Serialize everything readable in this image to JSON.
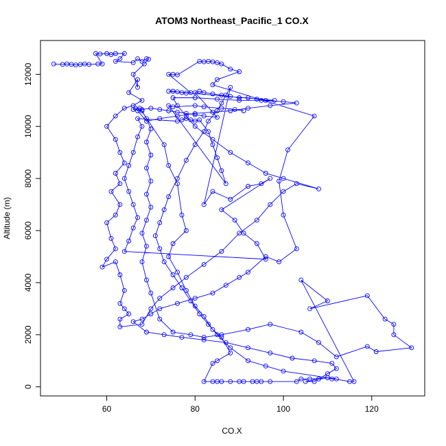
{
  "chart_data": {
    "type": "scatter",
    "title": "ATOM3 Northeast_Pacific_1 CO.X",
    "xlabel": "CO.X",
    "ylabel": "Altitude (m)",
    "xlim": [
      45,
      132
    ],
    "ylim": [
      -350,
      13300
    ],
    "x_ticks": [
      60,
      80,
      100,
      120
    ],
    "y_ticks": [
      0,
      2000,
      4000,
      6000,
      8000,
      10000,
      12000
    ],
    "x_tick_labels": [
      "60",
      "80",
      "100",
      "120"
    ],
    "y_tick_labels": [
      "0",
      "2000",
      "4000",
      "6000",
      "8000",
      "10000",
      "12000"
    ],
    "color": "#0000ff",
    "marker": "open-circle",
    "connected": true,
    "grid": false,
    "points": [
      [
        48,
        12400
      ],
      [
        50,
        12380
      ],
      [
        51,
        12400
      ],
      [
        52,
        12380
      ],
      [
        53,
        12360
      ],
      [
        54,
        12380
      ],
      [
        55,
        12400
      ],
      [
        56,
        12380
      ],
      [
        58,
        12400
      ],
      [
        59,
        12400
      ],
      [
        57.5,
        12800
      ],
      [
        58.5,
        12780
      ],
      [
        60,
        12800
      ],
      [
        61,
        12760
      ],
      [
        62,
        12800
      ],
      [
        64,
        12800
      ],
      [
        63,
        12600
      ],
      [
        62,
        12500
      ],
      [
        66,
        12450
      ],
      [
        67,
        12600
      ],
      [
        68,
        12500
      ],
      [
        69,
        12600
      ],
      [
        69.5,
        12580
      ],
      [
        68.5,
        12400
      ],
      [
        66,
        12000
      ],
      [
        67,
        11500
      ],
      [
        67,
        11800
      ],
      [
        65,
        11300
      ],
      [
        68,
        11000
      ],
      [
        66,
        10800
      ],
      [
        64,
        10700
      ],
      [
        62,
        10400
      ],
      [
        60,
        10000
      ],
      [
        62,
        9500
      ],
      [
        63,
        9000
      ],
      [
        64,
        8600
      ],
      [
        62,
        8200
      ],
      [
        63,
        7800
      ],
      [
        61,
        7500
      ],
      [
        63,
        7000
      ],
      [
        62,
        6600
      ],
      [
        60,
        6300
      ],
      [
        61,
        5700
      ],
      [
        62,
        5300
      ],
      [
        60,
        4900
      ],
      [
        59,
        4600
      ],
      [
        62,
        4800
      ],
      [
        63,
        4300
      ],
      [
        64,
        3700
      ],
      [
        63,
        3200
      ],
      [
        64,
        3000
      ],
      [
        65,
        2800
      ],
      [
        63,
        2600
      ],
      [
        63,
        2300
      ],
      [
        68,
        2400
      ],
      [
        70,
        3000
      ],
      [
        72,
        3400
      ],
      [
        75,
        3800
      ],
      [
        78,
        4200
      ],
      [
        82,
        4700
      ],
      [
        86,
        5200
      ],
      [
        90,
        5900
      ],
      [
        94,
        6400
      ],
      [
        97,
        7000
      ],
      [
        100,
        7500
      ],
      [
        103,
        7800
      ],
      [
        108,
        7600
      ],
      [
        100,
        8000
      ],
      [
        96,
        8200
      ],
      [
        92,
        8600
      ],
      [
        88,
        9000
      ],
      [
        84,
        9500
      ],
      [
        80,
        10000
      ],
      [
        78,
        10400
      ],
      [
        76,
        10800
      ],
      [
        75,
        11100
      ],
      [
        80,
        11100
      ],
      [
        85,
        11050
      ],
      [
        90,
        11000
      ],
      [
        95,
        11000
      ],
      [
        100,
        10950
      ],
      [
        103,
        10900
      ],
      [
        97,
        10800
      ],
      [
        92,
        10700
      ],
      [
        88,
        10600
      ],
      [
        84,
        10550
      ],
      [
        80,
        10500
      ],
      [
        76,
        10400
      ],
      [
        72,
        10300
      ],
      [
        69,
        10200
      ],
      [
        67,
        10600
      ],
      [
        68,
        10650
      ],
      [
        70,
        10700
      ],
      [
        72,
        10650
      ],
      [
        74,
        10600
      ],
      [
        76,
        10550
      ],
      [
        78,
        10500
      ],
      [
        80,
        10450
      ],
      [
        82,
        10400
      ],
      [
        85,
        10350
      ],
      [
        80,
        11300
      ],
      [
        81,
        11350
      ],
      [
        82,
        11300
      ],
      [
        84,
        11250
      ],
      [
        86,
        11200
      ],
      [
        88,
        11150
      ],
      [
        90,
        11100
      ],
      [
        92,
        11100
      ],
      [
        94,
        11050
      ],
      [
        96,
        11000
      ],
      [
        98,
        11000
      ],
      [
        74,
        11350
      ],
      [
        75,
        11350
      ],
      [
        76,
        11330
      ],
      [
        77,
        11300
      ],
      [
        78,
        11280
      ],
      [
        79,
        11300
      ],
      [
        74,
        12000
      ],
      [
        75,
        12000
      ],
      [
        76,
        11980
      ],
      [
        81,
        12500
      ],
      [
        82,
        12480
      ],
      [
        83,
        12500
      ],
      [
        84,
        12480
      ],
      [
        85,
        12450
      ],
      [
        86,
        12400
      ],
      [
        88,
        12200
      ],
      [
        90,
        12100
      ],
      [
        85,
        11800
      ],
      [
        84,
        11600
      ],
      [
        107,
        10400
      ],
      [
        101,
        9100
      ],
      [
        99,
        7900
      ],
      [
        100,
        6600
      ],
      [
        103,
        5300
      ],
      [
        99,
        4800
      ],
      [
        96,
        5000
      ],
      [
        92,
        4400
      ],
      [
        90,
        4200
      ],
      [
        87,
        3900
      ],
      [
        84,
        3600
      ],
      [
        80,
        3400
      ],
      [
        76,
        3200
      ],
      [
        72,
        3000
      ],
      [
        70,
        2800
      ],
      [
        68,
        2600
      ],
      [
        66,
        2500
      ],
      [
        69,
        2100
      ],
      [
        73,
        2000
      ],
      [
        77,
        1900
      ],
      [
        82,
        1800
      ],
      [
        87,
        1700
      ],
      [
        92,
        1500
      ],
      [
        97,
        1300
      ],
      [
        102,
        1100
      ],
      [
        107,
        1000
      ],
      [
        111,
        900
      ],
      [
        112,
        700
      ],
      [
        110,
        500
      ],
      [
        108,
        300
      ],
      [
        107,
        200
      ],
      [
        105,
        200
      ],
      [
        110,
        350
      ],
      [
        115,
        200
      ],
      [
        116,
        200
      ],
      [
        104,
        4100
      ],
      [
        110,
        3300
      ],
      [
        106,
        3000
      ],
      [
        119,
        3500
      ],
      [
        123,
        2600
      ],
      [
        125,
        2400
      ],
      [
        125,
        2000
      ],
      [
        129,
        1500
      ],
      [
        121,
        1350
      ],
      [
        119,
        1550
      ],
      [
        112,
        1150
      ],
      [
        108,
        1700
      ],
      [
        104,
        2100
      ],
      [
        97,
        2400
      ],
      [
        92,
        2200
      ],
      [
        86,
        2000
      ],
      [
        82,
        1900
      ],
      [
        79,
        2000
      ],
      [
        75,
        2100
      ],
      [
        72,
        2600
      ],
      [
        70,
        3600
      ],
      [
        69,
        4100
      ],
      [
        68,
        4800
      ],
      [
        69,
        5400
      ],
      [
        68,
        5900
      ],
      [
        69,
        6400
      ],
      [
        70,
        6900
      ],
      [
        69,
        7400
      ],
      [
        70,
        7900
      ],
      [
        69,
        8400
      ],
      [
        70,
        8900
      ],
      [
        69,
        9400
      ],
      [
        70,
        9900
      ],
      [
        69,
        10300
      ],
      [
        68,
        10600
      ],
      [
        66,
        10650
      ],
      [
        66.5,
        10700
      ],
      [
        67.5,
        10700
      ],
      [
        73,
        9300
      ],
      [
        74,
        8500
      ],
      [
        76,
        7800
      ],
      [
        77,
        6600
      ],
      [
        78,
        6000
      ],
      [
        75,
        5500
      ],
      [
        74,
        5000
      ],
      [
        76,
        4400
      ],
      [
        78,
        3700
      ],
      [
        80,
        3100
      ],
      [
        82,
        2700
      ],
      [
        84,
        2200
      ],
      [
        86,
        1900
      ],
      [
        88,
        1300
      ],
      [
        85,
        1000
      ],
      [
        84,
        900
      ],
      [
        82,
        200
      ],
      [
        84,
        200
      ],
      [
        85,
        200
      ],
      [
        86,
        200
      ],
      [
        88,
        200
      ],
      [
        90,
        200
      ],
      [
        91,
        200
      ],
      [
        93,
        200
      ],
      [
        94,
        200
      ],
      [
        95,
        200
      ],
      [
        97,
        200
      ],
      [
        103,
        200
      ],
      [
        104,
        300
      ],
      [
        106,
        300
      ],
      [
        110,
        350
      ],
      [
        111,
        300
      ],
      [
        112,
        300
      ],
      [
        100,
        600
      ],
      [
        96,
        800
      ],
      [
        92,
        1000
      ],
      [
        88,
        1500
      ],
      [
        85,
        2000
      ],
      [
        83,
        2400
      ],
      [
        81,
        2800
      ],
      [
        79,
        3300
      ],
      [
        77,
        3800
      ],
      [
        75,
        4300
      ],
      [
        73,
        4800
      ],
      [
        72,
        5300
      ],
      [
        71,
        5800
      ],
      [
        72,
        6300
      ],
      [
        73,
        6800
      ],
      [
        74,
        7300
      ],
      [
        76,
        8000
      ],
      [
        78,
        8700
      ],
      [
        80,
        9300
      ],
      [
        82,
        9800
      ],
      [
        83,
        10200
      ],
      [
        85,
        10600
      ],
      [
        86,
        10900
      ],
      [
        87,
        11200
      ],
      [
        88,
        11500
      ],
      [
        82,
        7000
      ],
      [
        84,
        7500
      ],
      [
        88,
        7200
      ],
      [
        92,
        7700
      ],
      [
        95,
        7800
      ],
      [
        97,
        8000
      ],
      [
        86,
        6800
      ],
      [
        89,
        6400
      ],
      [
        91,
        5900
      ],
      [
        94,
        5500
      ],
      [
        96,
        4900
      ],
      [
        64,
        5200
      ],
      [
        65,
        5600
      ],
      [
        66,
        6100
      ],
      [
        67,
        6500
      ],
      [
        66,
        7000
      ],
      [
        65,
        7500
      ],
      [
        64,
        8000
      ],
      [
        65,
        8500
      ],
      [
        66,
        9000
      ],
      [
        67,
        9600
      ],
      [
        68,
        10000
      ],
      [
        67,
        10300
      ],
      [
        76,
        10200
      ],
      [
        77,
        10250
      ],
      [
        78,
        10300
      ],
      [
        79,
        10250
      ],
      [
        80,
        10200
      ],
      [
        81,
        10250
      ],
      [
        83,
        9800
      ],
      [
        84,
        9300
      ],
      [
        85,
        8800
      ],
      [
        86,
        8300
      ],
      [
        87,
        7800
      ],
      [
        74,
        10800
      ],
      [
        75,
        10750
      ],
      [
        80,
        10800
      ],
      [
        82,
        10750
      ],
      [
        86,
        10700
      ],
      [
        89,
        10650
      ],
      [
        91,
        10600
      ]
    ]
  }
}
